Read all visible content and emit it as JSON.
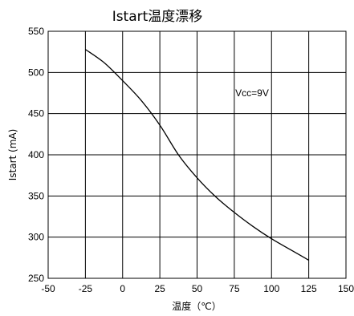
{
  "chart_data": {
    "type": "line",
    "title": "Istart温度漂移",
    "xlabel": "温度（℃）",
    "ylabel": "Istart (mA)",
    "xlim": [
      -50,
      150
    ],
    "ylim": [
      250,
      550
    ],
    "xticks": [
      -50,
      -25,
      0,
      25,
      50,
      75,
      100,
      125,
      150
    ],
    "yticks": [
      250,
      300,
      350,
      400,
      450,
      500,
      550
    ],
    "grid": true,
    "annotation": "Vcc=9V",
    "series": [
      {
        "x": [
          -25,
          -12.5,
          0,
          12.5,
          25,
          37.5,
          50,
          62.5,
          75,
          87.5,
          100,
          112.5,
          125
        ],
        "y": [
          528,
          512,
          490,
          466,
          436,
          400,
          372,
          349,
          330,
          313,
          298,
          285,
          272
        ]
      }
    ]
  }
}
